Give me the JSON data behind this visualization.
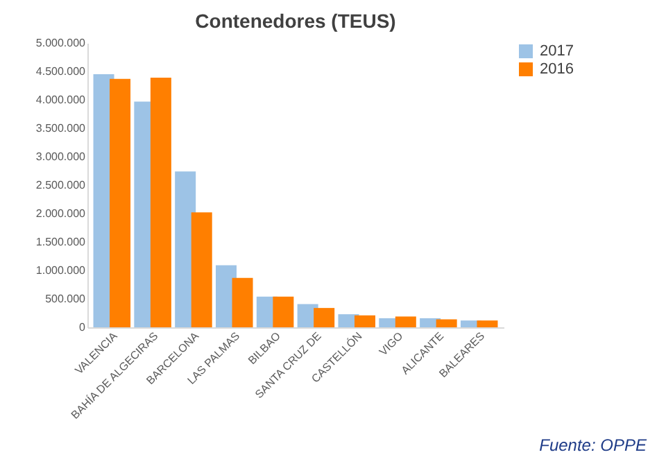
{
  "chart_data": {
    "type": "bar",
    "title": "Contenedores (TEUS)",
    "categories": [
      "VALENCIA",
      "BAHÍA DE ALGECIRAS",
      "BARCELONA",
      "LAS PALMAS",
      "BILBAO",
      "SANTA CRUZ DE",
      "CASTELLÓN",
      "VIGO",
      "ALICANTE",
      "BALEARES"
    ],
    "series": [
      {
        "name": "2017",
        "color": "#9dc3e6",
        "values": [
          4450000,
          3970000,
          2740000,
          1090000,
          540000,
          410000,
          230000,
          160000,
          160000,
          120000
        ]
      },
      {
        "name": "2016",
        "color": "#ff7f00",
        "values": [
          4370000,
          4390000,
          2020000,
          870000,
          540000,
          340000,
          210000,
          190000,
          140000,
          120000
        ]
      }
    ],
    "ylim": [
      0,
      5000000
    ],
    "yticks": [
      0,
      {
        "value": 500000,
        "label": "500.000"
      },
      {
        "value": 1000000,
        "label": "1.000.000"
      },
      {
        "value": 1500000,
        "label": "1.500.000"
      },
      {
        "value": 2000000,
        "label": "2.000.000"
      },
      {
        "value": 2500000,
        "label": "2.500.000"
      },
      {
        "value": 3000000,
        "label": "3.000.000"
      },
      {
        "value": 3500000,
        "label": "3.500.000"
      },
      {
        "value": 4000000,
        "label": "4.000.000"
      },
      {
        "value": 4500000,
        "label": "4.500.000"
      },
      {
        "value": 5000000,
        "label": "5.000.000"
      }
    ],
    "grid": false,
    "legend": "top right",
    "annotations": [
      "Fuente: OPPE"
    ]
  }
}
